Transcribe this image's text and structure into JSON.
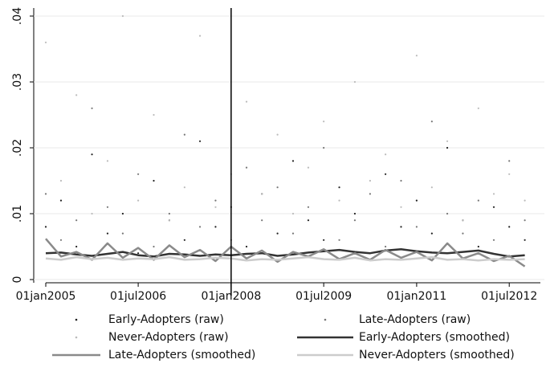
{
  "chart_data": {
    "type": "line",
    "x": [
      "2005-01-01",
      "2005-04-01",
      "2005-07-01",
      "2005-10-01",
      "2006-01-01",
      "2006-04-01",
      "2006-07-01",
      "2006-10-01",
      "2007-01-01",
      "2007-04-01",
      "2007-07-01",
      "2007-10-01",
      "2008-01-01",
      "2008-04-01",
      "2008-07-01",
      "2008-10-01",
      "2009-01-01",
      "2009-04-01",
      "2009-07-01",
      "2009-10-01",
      "2010-01-01",
      "2010-04-01",
      "2010-07-01",
      "2010-10-01",
      "2011-01-01",
      "2011-04-01",
      "2011-07-01",
      "2011-10-01",
      "2012-01-01",
      "2012-04-01",
      "2012-07-01",
      "2012-10-01"
    ],
    "xlim": [
      "2005-01-01",
      "2013-01-01"
    ],
    "xticks": [
      {
        "value": "2005-01-01",
        "label": "01jan2005"
      },
      {
        "value": "2006-07-01",
        "label": "01jul2006"
      },
      {
        "value": "2008-01-01",
        "label": "01jan2008"
      },
      {
        "value": "2009-07-01",
        "label": "01jul2009"
      },
      {
        "value": "2011-01-01",
        "label": "01jan2011"
      },
      {
        "value": "2012-07-01",
        "label": "01jul2012"
      }
    ],
    "ylim": [
      0,
      0.04
    ],
    "yticks": [
      0,
      {
        "value": 0.01,
        "label": ".01"
      },
      {
        "value": 0.02,
        "label": ".02"
      },
      {
        "value": 0.03,
        "label": ".03"
      },
      {
        "value": 0.04,
        "label": ".04"
      }
    ],
    "grid": true,
    "xline": "2008-01-01",
    "series": [
      {
        "name": "Early-Adopters (raw)",
        "style": "dots",
        "color": "#222222",
        "values": [
          0.008,
          0.012,
          0.005,
          0.019,
          0.007,
          0.01,
          0.004,
          0.015,
          0.009,
          0.006,
          0.021,
          0.008,
          0.011,
          0.005,
          0.013,
          0.007,
          0.018,
          0.009,
          0.006,
          0.014,
          0.01,
          0.004,
          0.016,
          0.008,
          0.012,
          0.007,
          0.02,
          0.009,
          0.005,
          0.011,
          0.008,
          0.006
        ]
      },
      {
        "name": "Late-Adopters (raw)",
        "style": "dots",
        "color": "#777777",
        "values": [
          0.013,
          0.006,
          0.009,
          0.026,
          0.011,
          0.007,
          0.016,
          0.005,
          0.01,
          0.022,
          0.008,
          0.012,
          0.006,
          0.017,
          0.009,
          0.014,
          0.007,
          0.011,
          0.02,
          0.006,
          0.009,
          0.013,
          0.005,
          0.015,
          0.008,
          0.024,
          0.01,
          0.007,
          0.012,
          0.006,
          0.018,
          0.009
        ]
      },
      {
        "name": "Never-Adopters (raw)",
        "style": "dots",
        "color": "#bbbbbb",
        "values": [
          0.036,
          0.015,
          0.028,
          0.01,
          0.018,
          0.04,
          0.012,
          0.025,
          0.009,
          0.014,
          0.037,
          0.011,
          0.016,
          0.027,
          0.013,
          0.022,
          0.01,
          0.017,
          0.024,
          0.012,
          0.03,
          0.015,
          0.019,
          0.011,
          0.034,
          0.014,
          0.021,
          0.009,
          0.026,
          0.013,
          0.016,
          0.012
        ]
      },
      {
        "name": "Early-Adopters (smoothed)",
        "style": "line",
        "color": "#333333",
        "values": [
          0.004,
          0.0041,
          0.0038,
          0.0036,
          0.0039,
          0.0042,
          0.0037,
          0.0035,
          0.0039,
          0.0038,
          0.0036,
          0.0038,
          0.0037,
          0.0039,
          0.004,
          0.0036,
          0.0038,
          0.0041,
          0.0043,
          0.0045,
          0.0042,
          0.004,
          0.0044,
          0.0046,
          0.0043,
          0.0041,
          0.004,
          0.0042,
          0.0044,
          0.0039,
          0.0035,
          0.0037
        ]
      },
      {
        "name": "Late-Adopters (smoothed)",
        "style": "line",
        "color": "#8a8a8a",
        "values": [
          0.0062,
          0.0035,
          0.0042,
          0.003,
          0.0055,
          0.0033,
          0.0048,
          0.003,
          0.0052,
          0.0034,
          0.0045,
          0.0028,
          0.005,
          0.0032,
          0.0044,
          0.0027,
          0.0042,
          0.0035,
          0.0046,
          0.0031,
          0.004,
          0.003,
          0.0045,
          0.0033,
          0.0042,
          0.0029,
          0.0055,
          0.0032,
          0.004,
          0.0028,
          0.0036,
          0.002
        ]
      },
      {
        "name": "Never-Adopters (smoothed)",
        "style": "line",
        "color": "#cccccc",
        "values": [
          0.0032,
          0.003,
          0.0034,
          0.0031,
          0.0033,
          0.003,
          0.0032,
          0.0031,
          0.0034,
          0.003,
          0.0031,
          0.0033,
          0.0032,
          0.0029,
          0.0031,
          0.003,
          0.0032,
          0.0034,
          0.0031,
          0.003,
          0.0033,
          0.0029,
          0.0031,
          0.003,
          0.0032,
          0.0034,
          0.003,
          0.0031,
          0.0029,
          0.0031,
          0.003,
          0.0031
        ]
      }
    ]
  }
}
